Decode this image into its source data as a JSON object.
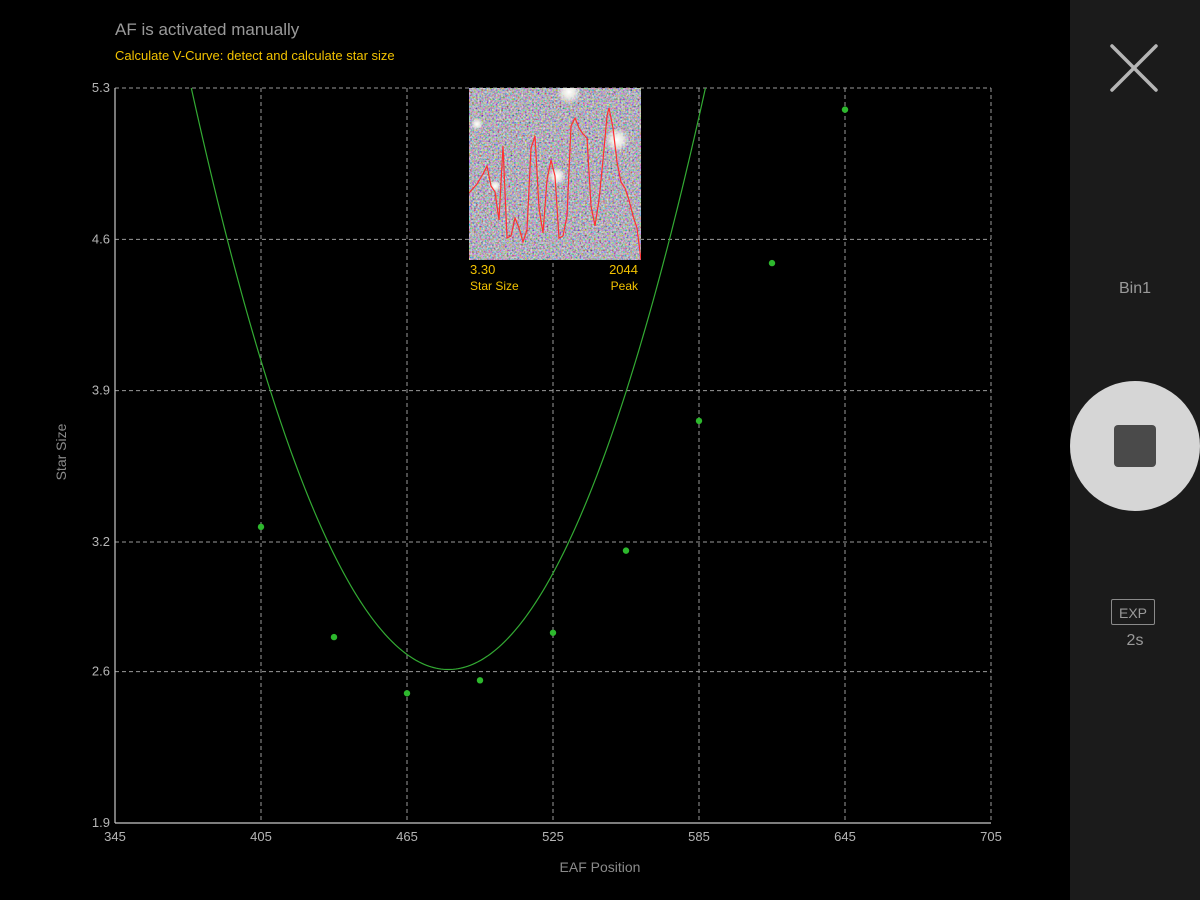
{
  "header": {
    "status": "AF is activated manually",
    "subtitle": "Calculate V-Curve: detect and calculate star size"
  },
  "thumbnail": {
    "star_size_value": "3.30",
    "star_size_label": "Star Size",
    "peak_value": "2044",
    "peak_label": "Peak"
  },
  "side_panel": {
    "bin_label": "Bin1",
    "exp_label": "EXP",
    "exp_value": "2s"
  },
  "colors": {
    "background": "#000000",
    "panel": "#1b1b1b",
    "curve": "#33aa33",
    "points": "#2db82d",
    "grid": "#9a9a9a",
    "accent_yellow": "#f2c200",
    "profile_red": "#ff3030"
  },
  "chart_data": {
    "type": "scatter",
    "xlabel": "EAF Position",
    "ylabel": "Star Size",
    "xlim": [
      345,
      705
    ],
    "ylim": [
      1.9,
      5.3
    ],
    "x_ticks": [
      "345",
      "405",
      "465",
      "525",
      "585",
      "645",
      "705"
    ],
    "y_ticks": [
      "1.9",
      "2.6",
      "3.2",
      "3.9",
      "4.6",
      "5.3"
    ],
    "grid": true,
    "points": [
      {
        "x": 405,
        "y": 3.27
      },
      {
        "x": 435,
        "y": 2.76
      },
      {
        "x": 465,
        "y": 2.5
      },
      {
        "x": 495,
        "y": 2.56
      },
      {
        "x": 525,
        "y": 2.78
      },
      {
        "x": 555,
        "y": 3.16
      },
      {
        "x": 585,
        "y": 3.76
      },
      {
        "x": 615,
        "y": 4.49
      },
      {
        "x": 645,
        "y": 5.2
      }
    ],
    "fit_curve": {
      "vertex_x": 482,
      "vertex_y": 2.61,
      "a": 0.000241
    }
  }
}
